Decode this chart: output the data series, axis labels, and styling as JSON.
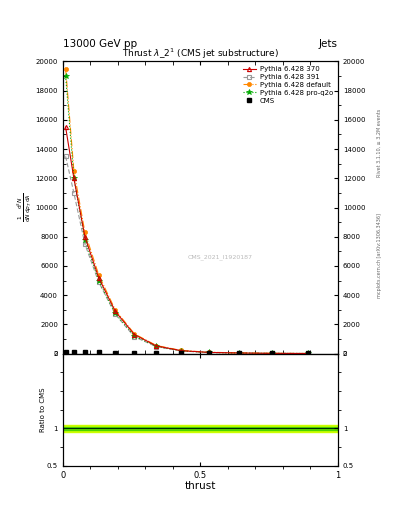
{
  "title_top": "13000 GeV pp",
  "title_top_right": "Jets",
  "plot_title": "Thrust $\\lambda$_2$^1$ (CMS jet substructure)",
  "watermark": "CMS_2021_I1920187",
  "right_label_top": "Rivet 3.1.10, ≥ 3.2M events",
  "right_label_bottom": "mcplots.cern.ch [arXiv:1306.3436]",
  "ylabel_ratio": "Ratio to CMS",
  "xlabel": "thrust",
  "xlim": [
    0.0,
    1.0
  ],
  "ylim_main": [
    0,
    20000
  ],
  "ylim_ratio": [
    0.5,
    2.0
  ],
  "yticks_main": [
    0,
    2000,
    4000,
    6000,
    8000,
    10000,
    12000,
    14000,
    16000,
    18000,
    20000
  ],
  "yticks_ratio": [
    0.5,
    1.0,
    2.0
  ],
  "thrust_x": [
    0.01,
    0.04,
    0.08,
    0.13,
    0.19,
    0.26,
    0.34,
    0.43,
    0.53,
    0.64,
    0.76,
    0.89
  ],
  "cms_x": [
    0.01,
    0.04,
    0.08,
    0.13,
    0.19,
    0.26,
    0.34,
    0.43,
    0.53,
    0.64,
    0.76,
    0.89
  ],
  "cms_y": [
    100,
    100,
    80,
    80,
    60,
    50,
    40,
    30,
    20,
    15,
    10,
    5
  ],
  "pythia_370_y": [
    15500,
    12000,
    8000,
    5200,
    2900,
    1300,
    520,
    200,
    80,
    40,
    15,
    5
  ],
  "pythia_391_y": [
    13500,
    11000,
    7500,
    4900,
    2700,
    1150,
    470,
    175,
    70,
    35,
    12,
    4
  ],
  "pythia_default_y": [
    19500,
    12500,
    8300,
    5400,
    3000,
    1350,
    550,
    215,
    90,
    45,
    18,
    6
  ],
  "pythia_proq2o_y": [
    19000,
    12000,
    7800,
    5000,
    2750,
    1200,
    490,
    185,
    75,
    38,
    14,
    5
  ],
  "cms_color": "#000000",
  "pythia_370_color": "#cc0000",
  "pythia_391_color": "#999999",
  "pythia_default_color": "#ff8800",
  "pythia_proq2o_color": "#00aa00",
  "ratio_band_yellow": "#ccff00",
  "ratio_band_green": "#00bb00",
  "background_color": "#ffffff"
}
